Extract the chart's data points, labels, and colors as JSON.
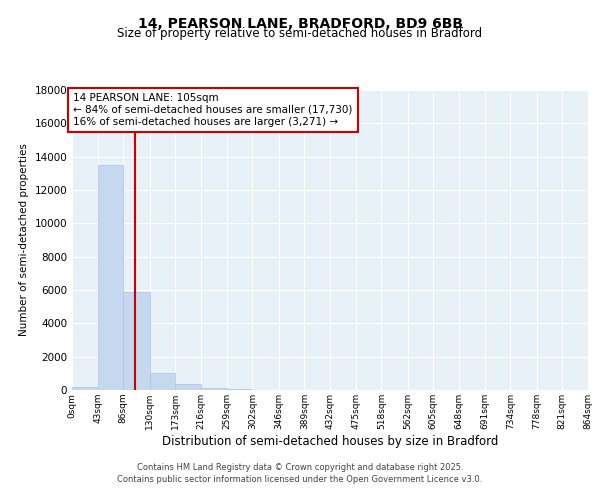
{
  "title": "14, PEARSON LANE, BRADFORD, BD9 6BB",
  "subtitle": "Size of property relative to semi-detached houses in Bradford",
  "xlabel": "Distribution of semi-detached houses by size in Bradford",
  "ylabel": "Number of semi-detached properties",
  "property_size": 105,
  "pct_smaller": 84,
  "pct_larger": 16,
  "n_smaller": 17730,
  "n_larger": 3271,
  "bar_color": "#c5d8f0",
  "bar_edge_color": "#a8c4e0",
  "marker_color": "#cc0000",
  "annotation_box_color": "#cc0000",
  "background_color": "#f7f9fc",
  "plot_bg_color": "#e8f0f8",
  "grid_color": "#ffffff",
  "ylim": [
    0,
    18000
  ],
  "yticks": [
    0,
    2000,
    4000,
    6000,
    8000,
    10000,
    12000,
    14000,
    16000,
    18000
  ],
  "bin_edges": [
    0,
    43,
    86,
    130,
    173,
    216,
    259,
    302,
    346,
    389,
    432,
    475,
    518,
    562,
    605,
    648,
    691,
    734,
    778,
    821,
    864
  ],
  "bin_labels": [
    "0sqm",
    "43sqm",
    "86sqm",
    "130sqm",
    "173sqm",
    "216sqm",
    "259sqm",
    "302sqm",
    "346sqm",
    "389sqm",
    "432sqm",
    "475sqm",
    "518sqm",
    "562sqm",
    "605sqm",
    "648sqm",
    "691sqm",
    "734sqm",
    "778sqm",
    "821sqm",
    "864sqm"
  ],
  "bar_heights": [
    200,
    13500,
    5900,
    1000,
    350,
    100,
    50,
    20,
    5,
    3,
    2,
    1,
    1,
    0,
    0,
    0,
    0,
    0,
    0,
    0
  ],
  "footnote1": "Contains HM Land Registry data © Crown copyright and database right 2025.",
  "footnote2": "Contains public sector information licensed under the Open Government Licence v3.0."
}
